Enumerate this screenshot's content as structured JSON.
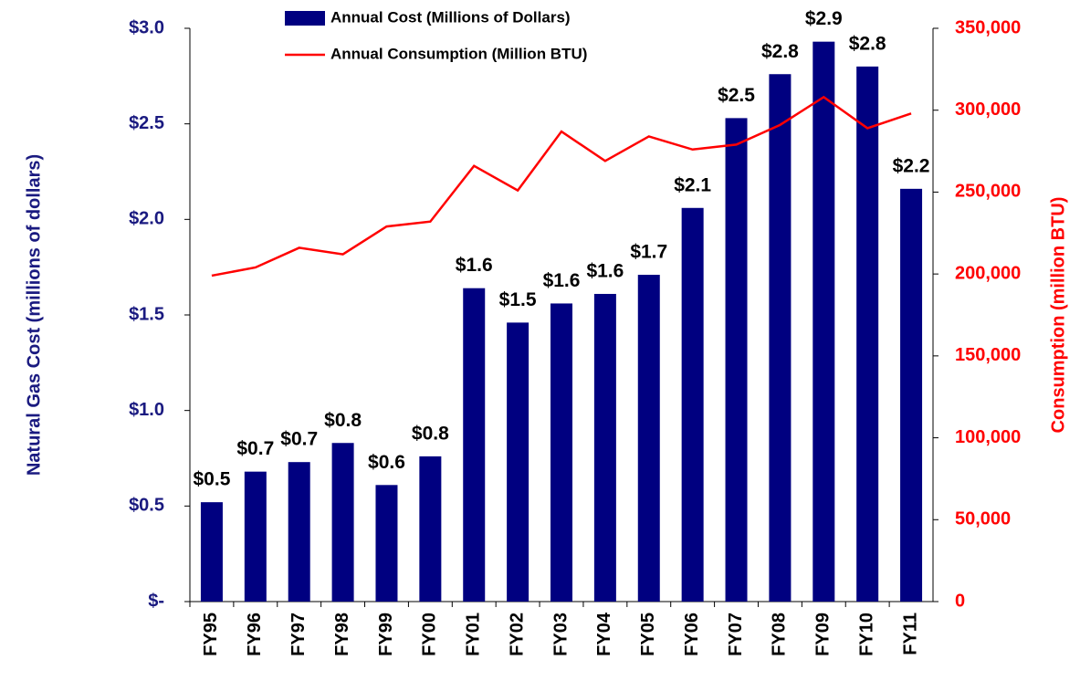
{
  "chart_data": {
    "type": "bar",
    "categories": [
      "FY95",
      "FY96",
      "FY97",
      "FY98",
      "FY99",
      "FY00",
      "FY01",
      "FY02",
      "FY03",
      "FY04",
      "FY05",
      "FY06",
      "FY07",
      "FY08",
      "FY09",
      "FY10",
      "FY11"
    ],
    "series": [
      {
        "name": "Annual Cost (Millions of Dollars)",
        "type": "bar",
        "color": "#000080",
        "values": [
          0.52,
          0.68,
          0.73,
          0.83,
          0.61,
          0.76,
          1.64,
          1.46,
          1.56,
          1.61,
          1.71,
          2.06,
          2.53,
          2.76,
          2.93,
          2.8,
          2.16
        ],
        "value_labels": [
          "$0.5",
          "$0.7",
          "$0.7",
          "$0.8",
          "$0.6",
          "$0.8",
          "$1.6",
          "$1.5",
          "$1.6",
          "$1.6",
          "$1.7",
          "$2.1",
          "$2.5",
          "$2.8",
          "$2.9",
          "$2.8",
          "$2.2"
        ]
      },
      {
        "name": "Annual Consumption (Million BTU)",
        "type": "line",
        "color": "#ff0000",
        "axis": "y2",
        "values": [
          199000,
          204000,
          216000,
          212000,
          229000,
          232000,
          266000,
          251000,
          287000,
          269000,
          284000,
          276000,
          279000,
          291000,
          308000,
          289000,
          298000
        ]
      }
    ],
    "y_label": "Natural Gas Cost (millions of dollars)",
    "y2_label": "Consumption (million BTU)",
    "ylim": [
      0,
      3
    ],
    "yticks": [
      {
        "value": 0,
        "label": "$-"
      },
      {
        "value": 0.5,
        "label": "$0.5"
      },
      {
        "value": 1,
        "label": "$1.0"
      },
      {
        "value": 1.5,
        "label": "$1.5"
      },
      {
        "value": 2,
        "label": "$2.0"
      },
      {
        "value": 2.5,
        "label": "$2.5"
      },
      {
        "value": 3,
        "label": "$3.0"
      }
    ],
    "y2lim": [
      0,
      350000
    ],
    "y2ticks": [
      0,
      {
        "value": 50000,
        "label": "50,000"
      },
      {
        "value": 100000,
        "label": "100,000"
      },
      {
        "value": 150000,
        "label": "150,000"
      },
      {
        "value": 200000,
        "label": "200,000"
      },
      {
        "value": 250000,
        "label": "250,000"
      },
      {
        "value": 300000,
        "label": "300,000"
      },
      {
        "value": 350000,
        "label": "350,000"
      }
    ],
    "y_color": "#1a1a80",
    "y2_color": "#ff0000",
    "grid": false
  }
}
